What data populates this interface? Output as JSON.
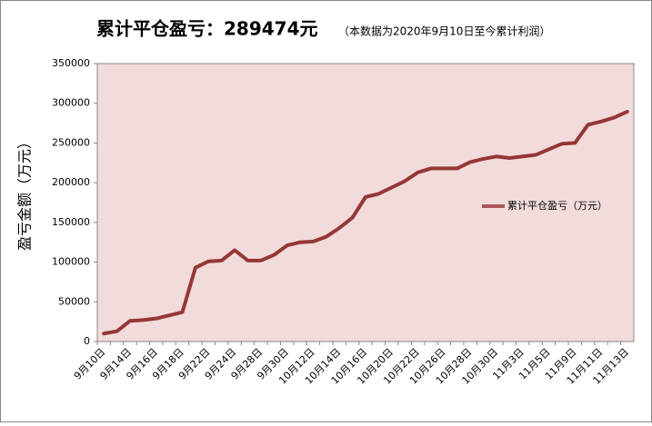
{
  "chart_data": {
    "type": "line",
    "title": "累计平仓盈亏：289474元",
    "subtitle": "（本数据为2020年9月10日至今累计利润）",
    "y_label": "盈亏金额（万元）",
    "categories": [
      "9月10日",
      null,
      "9月14日",
      null,
      "9月16日",
      null,
      "9月18日",
      null,
      "9月22日",
      null,
      "9月24日",
      null,
      "9月28日",
      null,
      "9月30日",
      null,
      "10月12日",
      null,
      "10月14日",
      null,
      "10月16日",
      null,
      "10月20日",
      null,
      "10月22日",
      null,
      "10月26日",
      null,
      "10月28日",
      null,
      "10月30日",
      null,
      "11月3日",
      null,
      "11月5日",
      null,
      "11月9日",
      null,
      "11月11日",
      null,
      "11月13日"
    ],
    "series": [
      {
        "name": "累计平仓盈亏（万元）",
        "color": "#953735",
        "values": [
          10000,
          13000,
          26000,
          27000,
          29000,
          33000,
          37000,
          93000,
          101000,
          102000,
          115000,
          102000,
          102000,
          109000,
          121000,
          125000,
          126000,
          132000,
          143000,
          156000,
          182000,
          186000,
          194000,
          202000,
          213000,
          218000,
          218000,
          218000,
          226000,
          230000,
          233000,
          231000,
          233000,
          235000,
          242000,
          249000,
          250000,
          273000,
          277000,
          282000,
          289474
        ]
      }
    ],
    "ylim": [
      0,
      350000
    ],
    "yticks": [
      0,
      50000,
      100000,
      150000,
      200000,
      250000,
      300000,
      350000
    ],
    "grid": false,
    "legend": "right",
    "plot_background": "#f2dcdb"
  }
}
